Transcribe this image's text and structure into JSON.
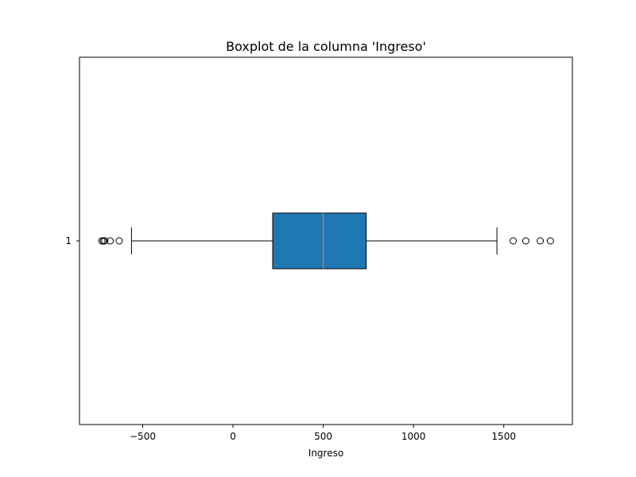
{
  "chart_data": {
    "type": "boxplot",
    "orientation": "horizontal",
    "title": "Boxplot de la columna 'Ingreso'",
    "xlabel": "Ingreso",
    "ylabel": "",
    "xlim": [
      -850,
      1880
    ],
    "x_ticks": [
      -500,
      0,
      500,
      1000,
      1500
    ],
    "x_tick_labels": [
      "−500",
      "0",
      "500",
      "1000",
      "1500"
    ],
    "y_tick_labels": [
      "1"
    ],
    "grid": false,
    "colors": {
      "box_fill": "#1f77b4",
      "median": "#ff7f0e",
      "line": "#000000"
    },
    "boxes": [
      {
        "label": "1",
        "whisker_low": -562,
        "q1": 220,
        "median": 500,
        "q3": 738,
        "whisker_high": 1462,
        "outliers": [
          -726,
          -718,
          -710,
          -680,
          -630,
          1552,
          1622,
          1702,
          1758
        ]
      }
    ]
  }
}
